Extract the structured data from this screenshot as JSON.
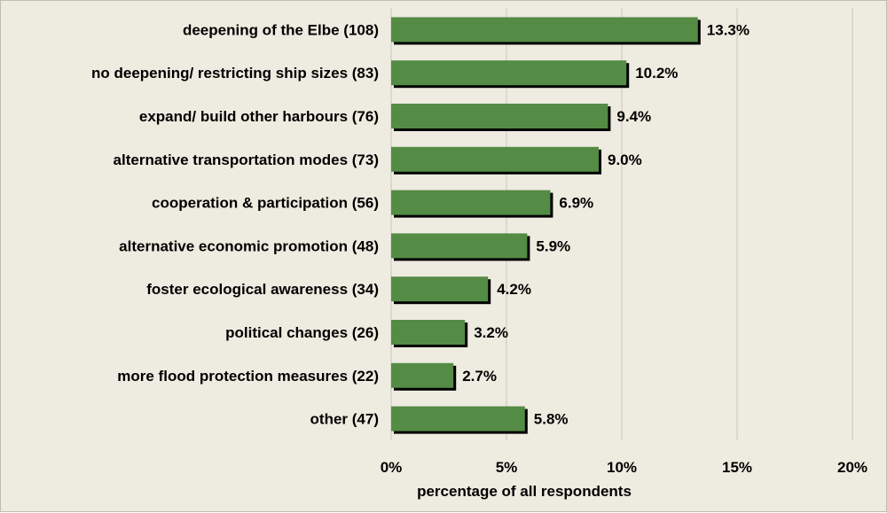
{
  "chart_data": {
    "type": "bar",
    "orientation": "horizontal",
    "categories": [
      "deepening of the Elbe (108)",
      "no deepening/ restricting ship sizes (83)",
      "expand/ build other harbours (76)",
      "alternative transportation modes (73)",
      "cooperation & participation (56)",
      "alternative economic promotion (48)",
      "foster ecological awareness (34)",
      "political changes (26)",
      "more flood protection measures (22)",
      "other (47)"
    ],
    "values": [
      13.3,
      10.2,
      9.4,
      9.0,
      6.9,
      5.9,
      4.2,
      3.2,
      2.7,
      5.8
    ],
    "value_labels": [
      "13.3%",
      "10.2%",
      "9.4%",
      "9.0%",
      "6.9%",
      "5.9%",
      "4.2%",
      "3.2%",
      "2.7%",
      "5.8%"
    ],
    "xlabel": "percentage of all respondents",
    "ylabel": "",
    "xlim": [
      0,
      20
    ],
    "xticks": [
      0,
      5,
      10,
      15,
      20
    ],
    "xtick_labels": [
      "0%",
      "5%",
      "10%",
      "15%",
      "20%"
    ],
    "grid": "vertical",
    "legend": "none",
    "colors": {
      "bar": "#548b45",
      "bar_shadow": "#000000",
      "plot_background": "#eeebe0",
      "gridline": "#c8c6bd"
    }
  }
}
